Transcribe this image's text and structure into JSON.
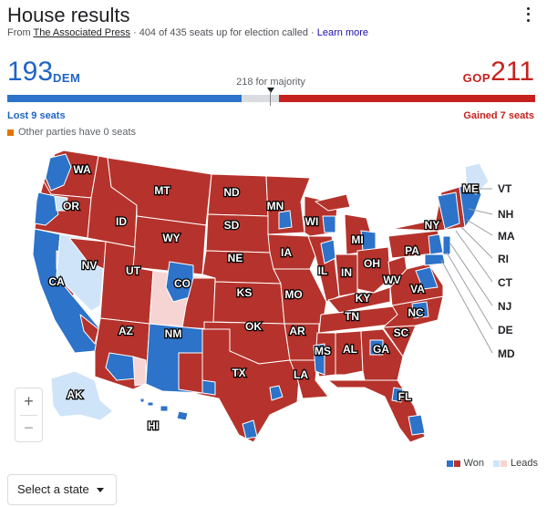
{
  "header": {
    "title": "House results",
    "source_prefix": "From ",
    "source_name": "The Associated Press",
    "source_suffix": " · 404 of 435 seats up for election called · ",
    "learn_more": "Learn more",
    "menu_icon": "more-vert-icon"
  },
  "tally": {
    "dem_count": "193",
    "dem_label": "DEM",
    "gop_label": "GOP",
    "gop_count": "211",
    "majority_text": "218 for majority",
    "dem_seats": 193,
    "gop_seats": 211,
    "total_seats": 435,
    "majority_seats": 218,
    "dem_change": "Lost 9 seats",
    "gop_change": "Gained 7 seats",
    "other_parties": "Other parties have 0 seats"
  },
  "colors": {
    "dem_won": "#2c73c9",
    "dem_lead": "#cfe4f9",
    "gop_won": "#b5332c",
    "gop_lead": "#f6d4d3",
    "other": "#e37400",
    "uncalled": "#dadce0"
  },
  "map": {
    "states": {
      "WA": {
        "label": "WA",
        "status": "mixed"
      },
      "OR": {
        "label": "OR",
        "status": "mixed"
      },
      "CA": {
        "label": "CA",
        "status": "mixed"
      },
      "NV": {
        "label": "NV",
        "status": "dem_lead"
      },
      "ID": {
        "label": "ID",
        "status": "gop_won"
      },
      "MT": {
        "label": "MT",
        "status": "gop_won"
      },
      "WY": {
        "label": "WY",
        "status": "gop_won"
      },
      "UT": {
        "label": "UT",
        "status": "gop_won"
      },
      "AZ": {
        "label": "AZ",
        "status": "mixed"
      },
      "CO": {
        "label": "CO",
        "status": "mixed"
      },
      "NM": {
        "label": "NM",
        "status": "dem_won"
      },
      "ND": {
        "label": "ND",
        "status": "gop_won"
      },
      "SD": {
        "label": "SD",
        "status": "gop_won"
      },
      "NE": {
        "label": "NE",
        "status": "gop_won"
      },
      "KS": {
        "label": "KS",
        "status": "gop_won"
      },
      "OK": {
        "label": "OK",
        "status": "gop_won"
      },
      "TX": {
        "label": "TX",
        "status": "mixed"
      },
      "MN": {
        "label": "MN",
        "status": "mixed"
      },
      "IA": {
        "label": "IA",
        "status": "gop_won"
      },
      "MO": {
        "label": "MO",
        "status": "gop_won"
      },
      "AR": {
        "label": "AR",
        "status": "gop_won"
      },
      "LA": {
        "label": "LA",
        "status": "gop_won"
      },
      "WI": {
        "label": "WI",
        "status": "mixed"
      },
      "IL": {
        "label": "IL",
        "status": "mixed"
      },
      "MS": {
        "label": "MS",
        "status": "mixed"
      },
      "MI": {
        "label": "MI",
        "status": "mixed"
      },
      "IN": {
        "label": "IN",
        "status": "gop_won"
      },
      "OH": {
        "label": "OH",
        "status": "gop_won"
      },
      "KY": {
        "label": "KY",
        "status": "gop_won"
      },
      "TN": {
        "label": "TN",
        "status": "gop_won"
      },
      "AL": {
        "label": "AL",
        "status": "gop_won"
      },
      "GA": {
        "label": "GA",
        "status": "mixed"
      },
      "FL": {
        "label": "FL",
        "status": "mixed"
      },
      "SC": {
        "label": "SC",
        "status": "gop_won"
      },
      "NC": {
        "label": "NC",
        "status": "mixed"
      },
      "VA": {
        "label": "VA",
        "status": "mixed"
      },
      "WV": {
        "label": "WV",
        "status": "gop_won"
      },
      "PA": {
        "label": "PA",
        "status": "mixed"
      },
      "NY": {
        "label": "NY",
        "status": "mixed"
      },
      "ME": {
        "label": "ME",
        "status": "dem_lead"
      },
      "AK": {
        "label": "AK",
        "status": "dem_lead"
      },
      "HI": {
        "label": "HI",
        "status": "dem_won"
      }
    },
    "callouts": {
      "VT": "VT",
      "NH": "NH",
      "MA": "MA",
      "RI": "RI",
      "CT": "CT",
      "NJ": "NJ",
      "DE": "DE",
      "MD": "MD"
    }
  },
  "zoom": {
    "in_label": "+",
    "out_label": "−"
  },
  "legend": {
    "won_label": "Won",
    "leads_label": "Leads"
  },
  "state_select": {
    "label": "Select a state",
    "icon": "chevron-down-icon"
  }
}
